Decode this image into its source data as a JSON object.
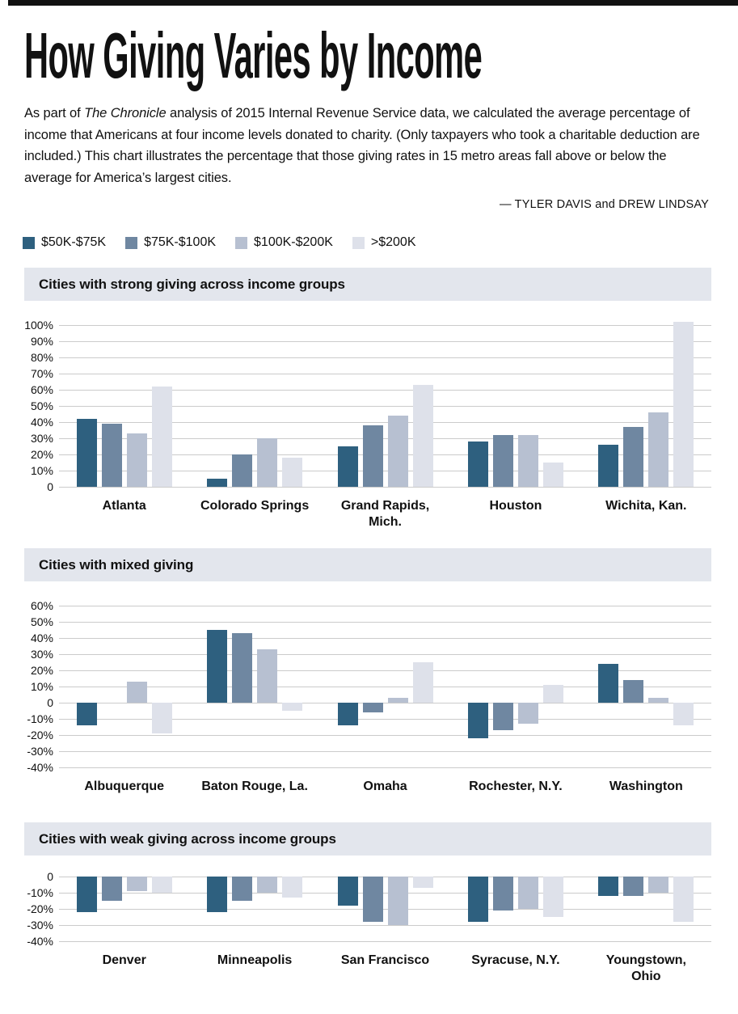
{
  "page": {
    "title": "How Giving Varies by Income",
    "intro_prefix": "As part of ",
    "intro_italic": "The Chronicle",
    "intro_suffix": " analysis of 2015 Internal Revenue Service data, we calculated the average percentage of income that Americans at four income levels donated to charity. (Only taxpayers who took a charitable deduction are included.) This chart illustrates the percentage that those giving rates in 15 metro areas fall above or below the average for America’s largest cities.",
    "byline": "— TYLER DAVIS and DREW LINDSAY"
  },
  "legend": {
    "items": [
      {
        "label": "$50K-$75K",
        "color": "#2e607f"
      },
      {
        "label": "$75K-$100K",
        "color": "#6f87a1"
      },
      {
        "label": "$100K-$200K",
        "color": "#b7c0d1"
      },
      {
        "label": ">$200K",
        "color": "#dee1ea"
      }
    ]
  },
  "style_colors": {
    "section_header_bg": "#e3e6ed",
    "gridline": "#cbcbcb",
    "top_rule": "#111111"
  },
  "chart_data": [
    {
      "type": "bar",
      "section_title": "Cities with strong giving across income groups",
      "ylim": [
        0,
        100
      ],
      "tick_step": 10,
      "ticks": [
        "100%",
        "90%",
        "80%",
        "70%",
        "60%",
        "50%",
        "40%",
        "30%",
        "20%",
        "10%",
        "0"
      ],
      "grid": true,
      "legend_position": "top",
      "categories": [
        "Atlanta",
        "Colorado Springs",
        "Grand Rapids,\nMich.",
        "Houston",
        "Wichita, Kan."
      ],
      "series": [
        {
          "name": "$50K-$75K",
          "values": [
            42,
            5,
            25,
            28,
            26
          ]
        },
        {
          "name": "$75K-$100K",
          "values": [
            39,
            20,
            38,
            32,
            37
          ]
        },
        {
          "name": "$100K-$200K",
          "values": [
            33,
            30,
            44,
            32,
            46
          ]
        },
        {
          "name": ">$200K",
          "values": [
            62,
            18,
            63,
            15,
            102
          ]
        }
      ]
    },
    {
      "type": "bar",
      "section_title": "Cities with mixed giving",
      "ylim": [
        -40,
        60
      ],
      "tick_step": 10,
      "ticks": [
        "60%",
        "50%",
        "40%",
        "30%",
        "20%",
        "10%",
        "0",
        "-10%",
        "-20%",
        "-30%",
        "-40%"
      ],
      "grid": true,
      "legend_position": "top",
      "categories": [
        "Albuquerque",
        "Baton Rouge, La.",
        "Omaha",
        "Rochester, N.Y.",
        "Washington"
      ],
      "series": [
        {
          "name": "$50K-$75K",
          "values": [
            -14,
            45,
            -14,
            -22,
            24
          ]
        },
        {
          "name": "$75K-$100K",
          "values": [
            0,
            43,
            -6,
            -17,
            14
          ]
        },
        {
          "name": "$100K-$200K",
          "values": [
            13,
            33,
            3,
            -13,
            3
          ]
        },
        {
          "name": ">$200K",
          "values": [
            -19,
            -5,
            25,
            11,
            -14
          ]
        }
      ]
    },
    {
      "type": "bar",
      "section_title": "Cities with weak giving across income groups",
      "ylim": [
        -40,
        0
      ],
      "tick_step": 10,
      "ticks": [
        "0",
        "-10%",
        "-20%",
        "-30%",
        "-40%"
      ],
      "grid": true,
      "legend_position": "top",
      "categories": [
        "Denver",
        "Minneapolis",
        "San Francisco",
        "Syracuse, N.Y.",
        "Youngstown,\nOhio"
      ],
      "series": [
        {
          "name": "$50K-$75K",
          "values": [
            -22,
            -22,
            -18,
            -28,
            -12
          ]
        },
        {
          "name": "$75K-$100K",
          "values": [
            -15,
            -15,
            -28,
            -21,
            -12
          ]
        },
        {
          "name": "$100K-$200K",
          "values": [
            -9,
            -10,
            -30,
            -20,
            -10
          ]
        },
        {
          "name": ">$200K",
          "values": [
            -10,
            -13,
            -7,
            -25,
            -28
          ]
        }
      ]
    }
  ]
}
